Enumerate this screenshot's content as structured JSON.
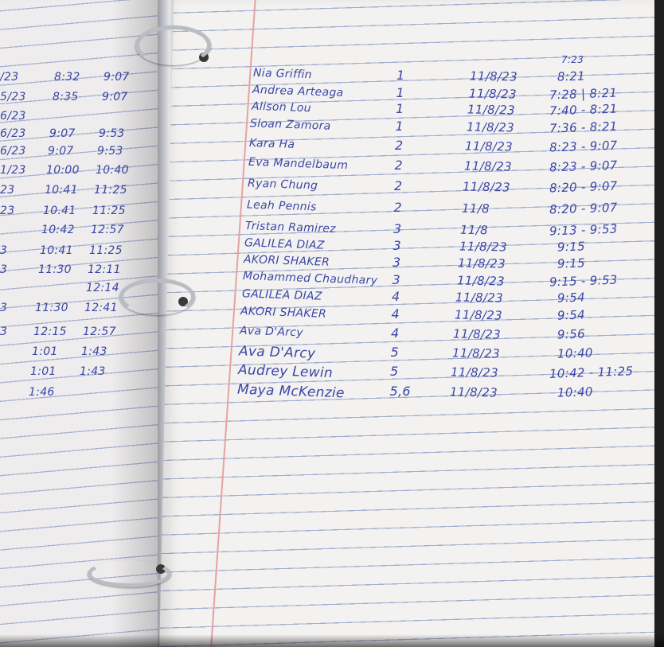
{
  "ink_color": "#3a46a8",
  "page_color": "#f3f2f0",
  "margin_color": "#e7a2a2",
  "right_page": {
    "rows": [
      {
        "name": "Nia Griffin",
        "period": "1",
        "date": "11/8/23",
        "time": "8:21",
        "note": "7:23"
      },
      {
        "name": "Andrea Arteaga",
        "period": "1",
        "date": "11/8/23",
        "time": "7:28 | 8:21"
      },
      {
        "name": "Alison Lou",
        "period": "1",
        "date": "11/8/23",
        "time": "7:40 - 8:21"
      },
      {
        "name": "Sloan Zamora",
        "period": "1",
        "date": "11/8/23",
        "time": "7:36 - 8:21"
      },
      {
        "name": "Kara Ha",
        "period": "2",
        "date": "11/8/23",
        "time": "8:23 - 9:07"
      },
      {
        "name": "Eva Mandelbaum",
        "period": "2",
        "date": "11/8/23",
        "time": "8:23 - 9:07"
      },
      {
        "name": "Ryan Chung",
        "period": "2",
        "date": "11/8/23",
        "time": "8:20 - 9:07"
      },
      {
        "name": "Leah Pennis",
        "period": "2",
        "date": "11/8",
        "time": "8:20 - 9:07"
      },
      {
        "name": "Tristan Ramirez",
        "period": "3",
        "date": "11/8",
        "time": "9:13 - 9:53"
      },
      {
        "name": "GALILEA DIAZ",
        "period": "3",
        "date": "11/8/23",
        "time": "9:15"
      },
      {
        "name": "AKORI SHAKER",
        "period": "3",
        "date": "11/8/23",
        "time": "9:15"
      },
      {
        "name": "Mohammed Chaudhary",
        "period": "3",
        "date": "11/8/23",
        "time": "9:15 - 9:53"
      },
      {
        "name": "GALILEA DIAZ",
        "period": "4",
        "date": "11/8/23",
        "time": "9:54"
      },
      {
        "name": "AKORI SHAKER",
        "period": "4",
        "date": "11/8/23",
        "time": "9:54"
      },
      {
        "name": "Ava D'Arcy",
        "period": "4",
        "date": "11/8/23",
        "time": "9:56"
      },
      {
        "name": "Ava D'Arcy",
        "period": "5",
        "date": "11/8/23",
        "time": "10:40"
      },
      {
        "name": "Audrey Lewin",
        "period": "5",
        "date": "11/8/23",
        "time": "10:42 - 11:25"
      },
      {
        "name": "Maya McKenzie",
        "period": "5,6",
        "date": "11/8/23",
        "time": "10:40"
      }
    ]
  },
  "left_page": {
    "rows": [
      {
        "date": "/23",
        "start": "8:32",
        "end": "9:07"
      },
      {
        "date": "5/23",
        "start": "8:35",
        "end": "9:07"
      },
      {
        "date": "6/23",
        "start": "",
        "end": ""
      },
      {
        "date": "6/23",
        "start": "9:07",
        "end": "9:53"
      },
      {
        "date": "6/23",
        "start": "9:07",
        "end": "9:53"
      },
      {
        "date": "1/23",
        "start": "10:00",
        "end": "10:40"
      },
      {
        "date": "23",
        "start": "10:41",
        "end": "11:25"
      },
      {
        "date": "23",
        "start": "10.41",
        "end": "11:25"
      },
      {
        "date": "",
        "start": "10:42",
        "end": "12:57"
      },
      {
        "date": "3",
        "start": "10:41",
        "end": "11:25"
      },
      {
        "date": "3",
        "start": "11:30",
        "end": "12:11"
      },
      {
        "date": "",
        "start": "",
        "end": "12:14"
      },
      {
        "date": "3",
        "start": "11:30",
        "end": "12:41"
      },
      {
        "date": "3",
        "start": "12:15",
        "end": "12:57"
      },
      {
        "date": "",
        "start": "1:01",
        "end": "1:43"
      },
      {
        "date": "",
        "start": "1:01",
        "end": "1:43"
      },
      {
        "date": "",
        "start": "1:46",
        "end": ""
      }
    ]
  }
}
